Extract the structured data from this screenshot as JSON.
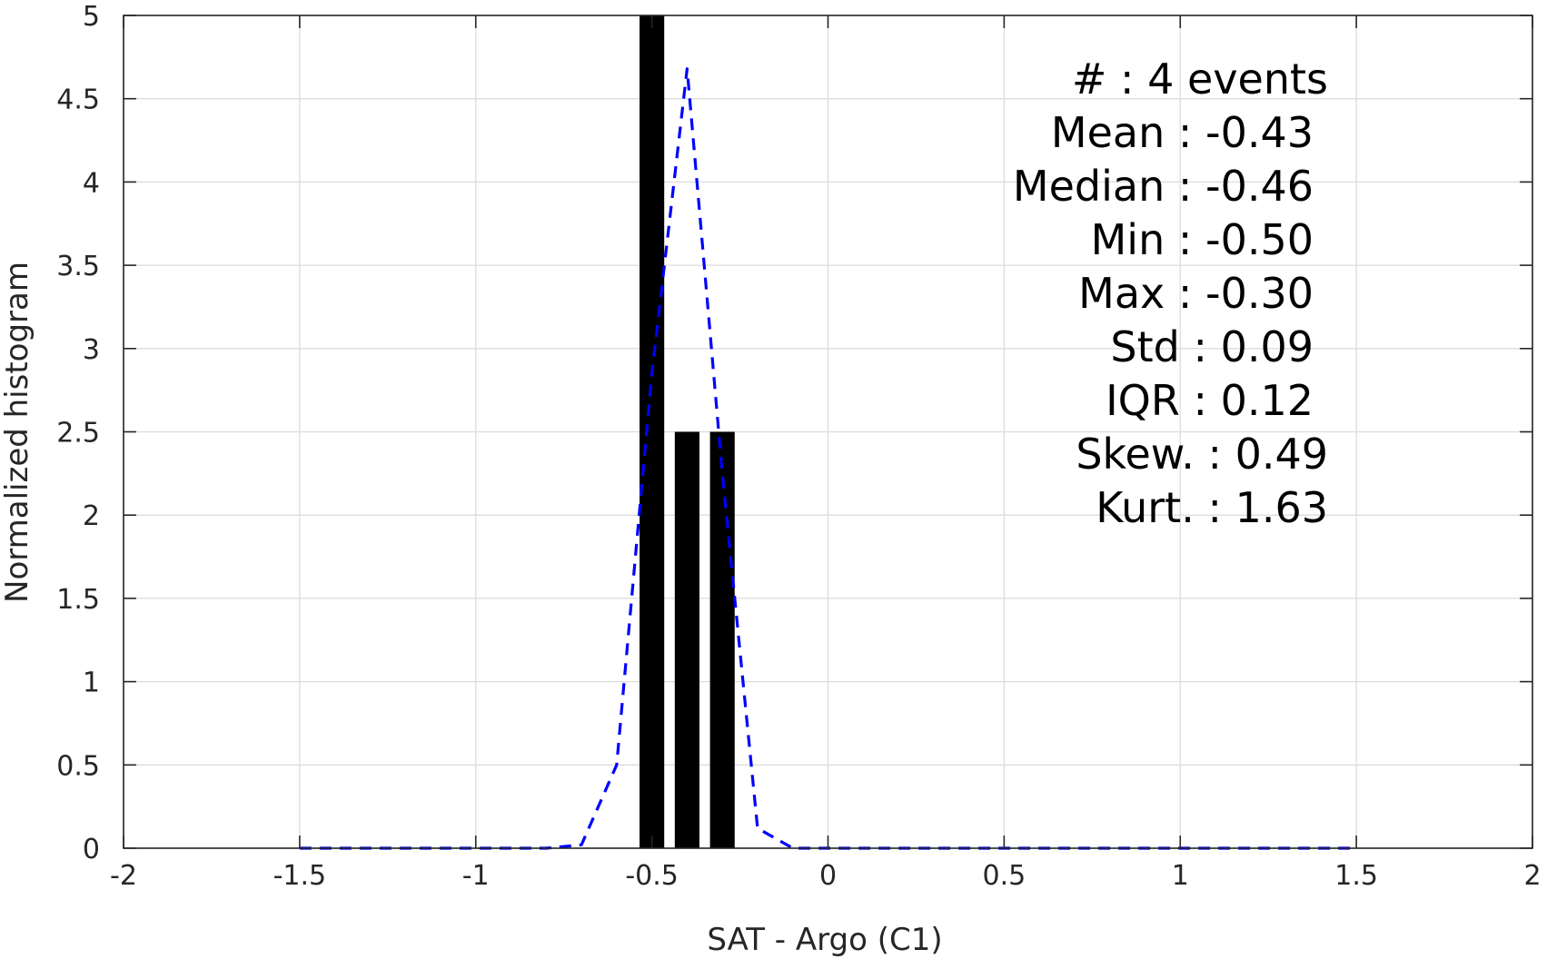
{
  "chart_data": {
    "type": "bar",
    "xlabel": "SAT - Argo (C1)",
    "ylabel": "Normalized histogram",
    "xlim": [
      -2,
      2
    ],
    "ylim": [
      0,
      5
    ],
    "x_ticks": [
      -2,
      -1.5,
      -1,
      -0.5,
      0,
      0.5,
      1,
      1.5,
      2
    ],
    "x_tick_labels": [
      "-2",
      "-1.5",
      "-1",
      "-0.5",
      "0",
      "0.5",
      "1",
      "1.5",
      "2"
    ],
    "y_ticks": [
      0,
      0.5,
      1,
      1.5,
      2,
      2.5,
      3,
      3.5,
      4,
      4.5,
      5
    ],
    "y_tick_labels": [
      "0",
      "0.5",
      "1",
      "1.5",
      "2",
      "2.5",
      "3",
      "3.5",
      "4",
      "4.5",
      "5"
    ],
    "grid": true,
    "bars": {
      "color": "#000000",
      "width": 0.07,
      "centers": [
        -0.5,
        -0.4,
        -0.3
      ],
      "values": [
        5,
        2.5,
        2.5
      ]
    },
    "fit_curve": {
      "color": "#0000ff",
      "style": "dashed",
      "x": [
        -1.5,
        -1.4,
        -1.3,
        -1.2,
        -1.1,
        -1.0,
        -0.9,
        -0.8,
        -0.7,
        -0.6,
        -0.5,
        -0.4,
        -0.3,
        -0.2,
        -0.1,
        0,
        0.1,
        0.2,
        0.3,
        0.4,
        0.5,
        0.6,
        0.7,
        0.8,
        0.9,
        1.0,
        1.1,
        1.2,
        1.3,
        1.4,
        1.5
      ],
      "y": [
        0,
        0,
        0,
        0,
        0,
        0,
        0,
        0,
        0.02,
        0.5,
        2.85,
        4.68,
        2.25,
        0.12,
        0,
        0,
        0,
        0,
        0,
        0,
        0,
        0,
        0,
        0,
        0,
        0,
        0,
        0,
        0,
        0,
        0
      ]
    },
    "stats_box": {
      "placement": "top-right",
      "lines": [
        "#  : 4 events",
        "Mean : -0.43",
        "Median : -0.46",
        "Min : -0.50",
        "Max : -0.30",
        "Std : 0.09",
        "IQR : 0.12",
        "Skew. : 0.49",
        "Kurt. : 1.63"
      ]
    }
  }
}
